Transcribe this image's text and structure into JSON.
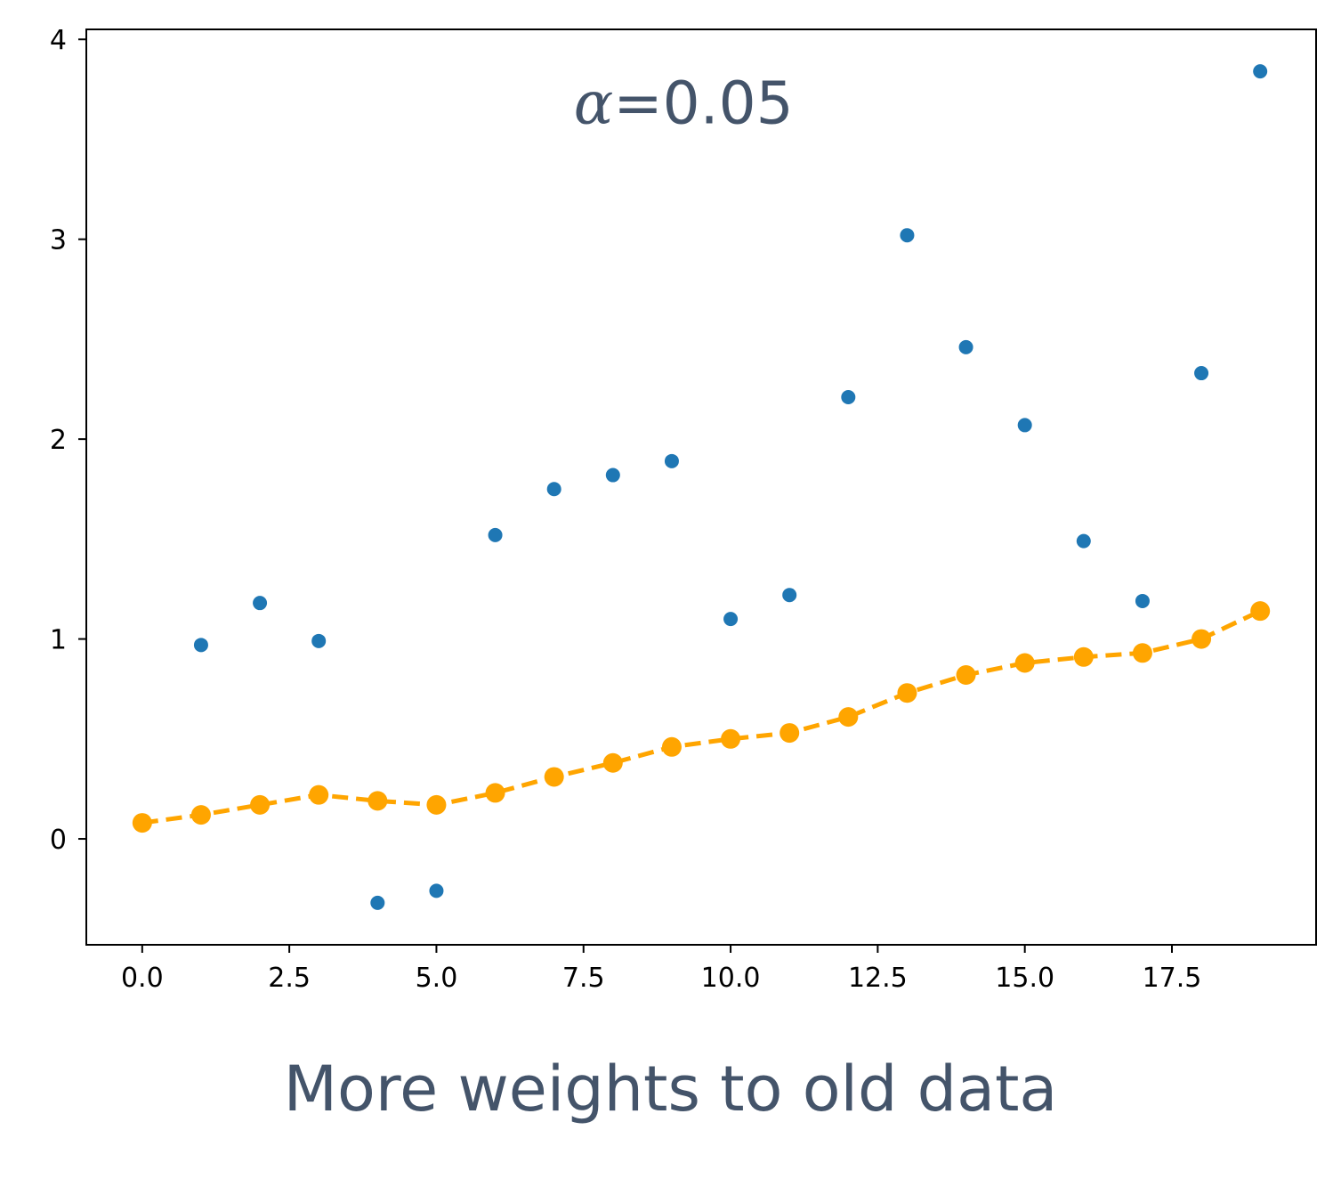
{
  "caption": "More weights to old data",
  "chart_data": {
    "type": "scatter",
    "annotation": {
      "symbol": "α",
      "text": "=0.05",
      "x": 9.2,
      "y": 3.58
    },
    "xlim": [
      -0.95,
      19.95
    ],
    "ylim": [
      -0.53,
      4.05
    ],
    "xticks": [
      0.0,
      2.5,
      5.0,
      7.5,
      10.0,
      12.5,
      15.0,
      17.5
    ],
    "xtick_labels": [
      "0.0",
      "2.5",
      "5.0",
      "7.5",
      "10.0",
      "12.5",
      "15.0",
      "17.5"
    ],
    "yticks": [
      0,
      1,
      2,
      3,
      4
    ],
    "ytick_labels": [
      "0",
      "1",
      "2",
      "3",
      "4"
    ],
    "grid": false,
    "colors": {
      "raw": "#1f77b4",
      "smoothed": "#ffa500",
      "axes": "#000000",
      "text": "#44546a"
    },
    "series": [
      {
        "style": "scatter",
        "x": [
          1,
          2,
          3,
          4,
          5,
          6,
          7,
          8,
          9,
          10,
          11,
          12,
          13,
          14,
          15,
          16,
          17,
          18,
          19
        ],
        "y": [
          0.97,
          1.18,
          0.99,
          -0.32,
          -0.26,
          1.52,
          1.75,
          1.82,
          1.89,
          1.1,
          1.22,
          2.21,
          3.02,
          2.46,
          2.07,
          1.49,
          1.19,
          2.33,
          3.84
        ]
      },
      {
        "style": "dashed-line-markers",
        "x": [
          0,
          1,
          2,
          3,
          4,
          5,
          6,
          7,
          8,
          9,
          10,
          11,
          12,
          13,
          14,
          15,
          16,
          17,
          18,
          19
        ],
        "y": [
          0.08,
          0.12,
          0.17,
          0.22,
          0.19,
          0.17,
          0.23,
          0.31,
          0.38,
          0.46,
          0.5,
          0.53,
          0.61,
          0.73,
          0.82,
          0.88,
          0.91,
          0.93,
          1.0,
          1.14
        ]
      }
    ]
  }
}
